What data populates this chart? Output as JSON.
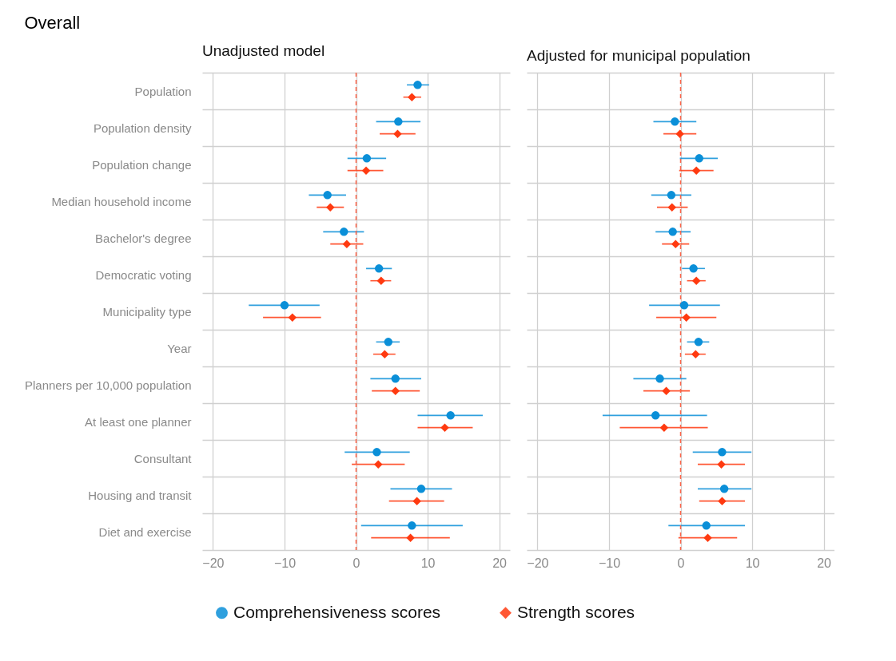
{
  "chart_data": [
    {
      "type": "scatter",
      "title": "Overall",
      "subtitle": "Unadjusted model",
      "orientation": "horizontal",
      "categories": [
        "Population",
        "Population density",
        "Population change",
        "Median household income",
        "Bachelor's degree",
        "Democratic voting",
        "Municipality type",
        "Year",
        "Planners per 10,000 population",
        "At least one planner",
        "Consultant",
        "Housing and transit",
        "Diet and exercise"
      ],
      "series": [
        {
          "name": "Comprehensiveness scores",
          "color": "#0a8fd8",
          "marker": "circle",
          "values": [
            8.6,
            5.9,
            1.5,
            -4.0,
            -1.7,
            3.2,
            -10.0,
            4.5,
            5.5,
            13.2,
            2.9,
            9.1,
            7.8
          ],
          "errors": [
            [
              7.1,
              10.2
            ],
            [
              2.8,
              9.0
            ],
            [
              -1.2,
              4.2
            ],
            [
              -6.6,
              -1.4
            ],
            [
              -4.6,
              1.1
            ],
            [
              1.4,
              5.0
            ],
            [
              -15.0,
              -5.1
            ],
            [
              2.8,
              6.1
            ],
            [
              2.0,
              9.1
            ],
            [
              8.6,
              17.7
            ],
            [
              -1.6,
              7.5
            ],
            [
              4.8,
              13.4
            ],
            [
              0.7,
              14.9
            ]
          ]
        },
        {
          "name": "Strength scores",
          "color": "#ff3a10",
          "marker": "diamond",
          "values": [
            7.8,
            5.8,
            1.4,
            -3.6,
            -1.3,
            3.5,
            -8.9,
            4.0,
            5.5,
            12.4,
            3.1,
            8.5,
            7.6
          ],
          "errors": [
            [
              6.6,
              9.1
            ],
            [
              3.3,
              8.3
            ],
            [
              -1.2,
              3.8
            ],
            [
              -5.5,
              -1.7
            ],
            [
              -3.6,
              1.0
            ],
            [
              2.0,
              4.9
            ],
            [
              -13.0,
              -4.9
            ],
            [
              2.4,
              5.5
            ],
            [
              2.2,
              8.9
            ],
            [
              8.6,
              16.3
            ],
            [
              -0.6,
              6.8
            ],
            [
              4.6,
              12.3
            ],
            [
              2.1,
              13.1
            ]
          ]
        }
      ],
      "xlim": [
        -21.5,
        21.5
      ],
      "xticks": [
        -20,
        -10,
        0,
        10,
        20
      ],
      "ref_lines": [
        {
          "axis": "x",
          "value": 0,
          "color": "#ff6347",
          "line_style": "dashed"
        }
      ],
      "grid": true,
      "legend": "bottom"
    },
    {
      "type": "scatter",
      "subtitle": "Adjusted for municipal population",
      "orientation": "horizontal",
      "categories": [
        "Population",
        "Population density",
        "Population change",
        "Median household income",
        "Bachelor's degree",
        "Democratic voting",
        "Municipality type",
        "Year",
        "Planners per 10,000 population",
        "At least one planner",
        "Consultant",
        "Housing and transit",
        "Diet and exercise"
      ],
      "series": [
        {
          "name": "Comprehensiveness scores",
          "color": "#0a8fd8",
          "marker": "circle",
          "values": [
            null,
            -0.8,
            2.6,
            -1.3,
            -1.1,
            1.8,
            0.5,
            2.5,
            -2.9,
            -3.5,
            5.8,
            6.1,
            3.6
          ],
          "errors": [
            null,
            [
              -3.8,
              2.2
            ],
            [
              -0.1,
              5.2
            ],
            [
              -4.1,
              1.5
            ],
            [
              -3.5,
              1.4
            ],
            [
              0.2,
              3.4
            ],
            [
              -4.4,
              5.5
            ],
            [
              0.9,
              4.0
            ],
            [
              -6.6,
              0.8
            ],
            [
              -10.9,
              3.7
            ],
            [
              1.7,
              9.9
            ],
            [
              2.4,
              9.9
            ],
            [
              -1.7,
              9.0
            ]
          ]
        },
        {
          "name": "Strength scores",
          "color": "#ff3a10",
          "marker": "diamond",
          "values": [
            null,
            -0.1,
            2.2,
            -1.2,
            -0.7,
            2.2,
            0.8,
            2.1,
            -2.0,
            -2.3,
            5.7,
            5.8,
            3.8
          ],
          "errors": [
            null,
            [
              -2.4,
              2.2
            ],
            [
              -0.2,
              4.6
            ],
            [
              -3.3,
              1.0
            ],
            [
              -2.6,
              1.2
            ],
            [
              0.9,
              3.5
            ],
            [
              -3.4,
              5.0
            ],
            [
              0.6,
              3.5
            ],
            [
              -5.2,
              1.3
            ],
            [
              -8.5,
              3.8
            ],
            [
              2.4,
              9.0
            ],
            [
              2.6,
              9.0
            ],
            [
              -0.3,
              7.9
            ]
          ]
        }
      ],
      "xlim": [
        -21.5,
        21.5
      ],
      "xticks": [
        -20,
        -10,
        0,
        10,
        20
      ],
      "ref_lines": [
        {
          "axis": "x",
          "value": 0,
          "color": "#ff6347",
          "line_style": "dashed"
        }
      ],
      "grid": true,
      "legend": "bottom",
      "tick_labels": "x"
    }
  ]
}
